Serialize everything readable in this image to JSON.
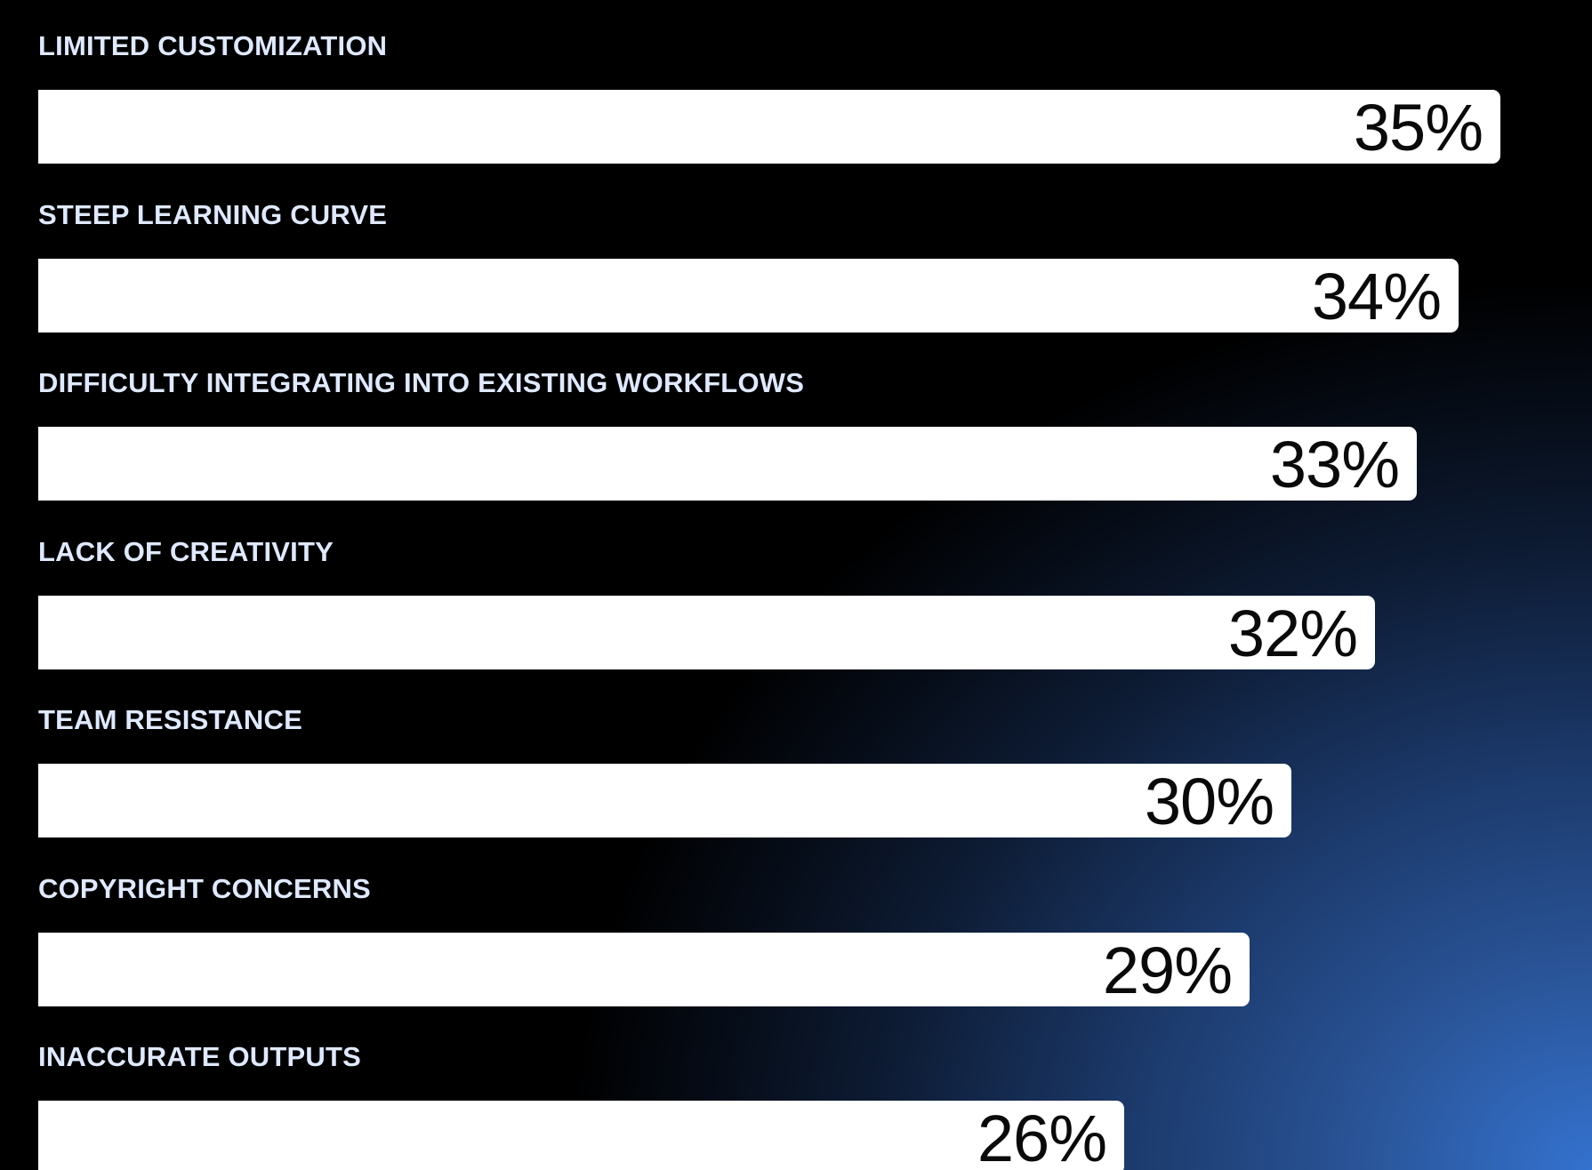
{
  "colors": {
    "background": "#000000",
    "gradient_accent": "#3472cf",
    "label_text": "#dfe9ff",
    "bar_fill": "#ffffff",
    "value_text": "#0a0a0a"
  },
  "chart_data": {
    "type": "bar",
    "orientation": "horizontal",
    "title": "",
    "xlabel": "",
    "ylabel": "",
    "categories": [
      "LIMITED CUSTOMIZATION",
      "STEEP LEARNING CURVE",
      "DIFFICULTY INTEGRATING INTO EXISTING WORKFLOWS",
      "LACK OF CREATIVITY",
      "TEAM RESISTANCE",
      "COPYRIGHT CONCERNS",
      "INACCURATE OUTPUTS"
    ],
    "values": [
      35,
      34,
      33,
      32,
      30,
      29,
      26
    ],
    "value_labels": [
      "35%",
      "34%",
      "33%",
      "32%",
      "30%",
      "29%",
      "26%"
    ],
    "unit": "%",
    "xlim": [
      0,
      37.6
    ],
    "grid": false,
    "legend": "none"
  }
}
